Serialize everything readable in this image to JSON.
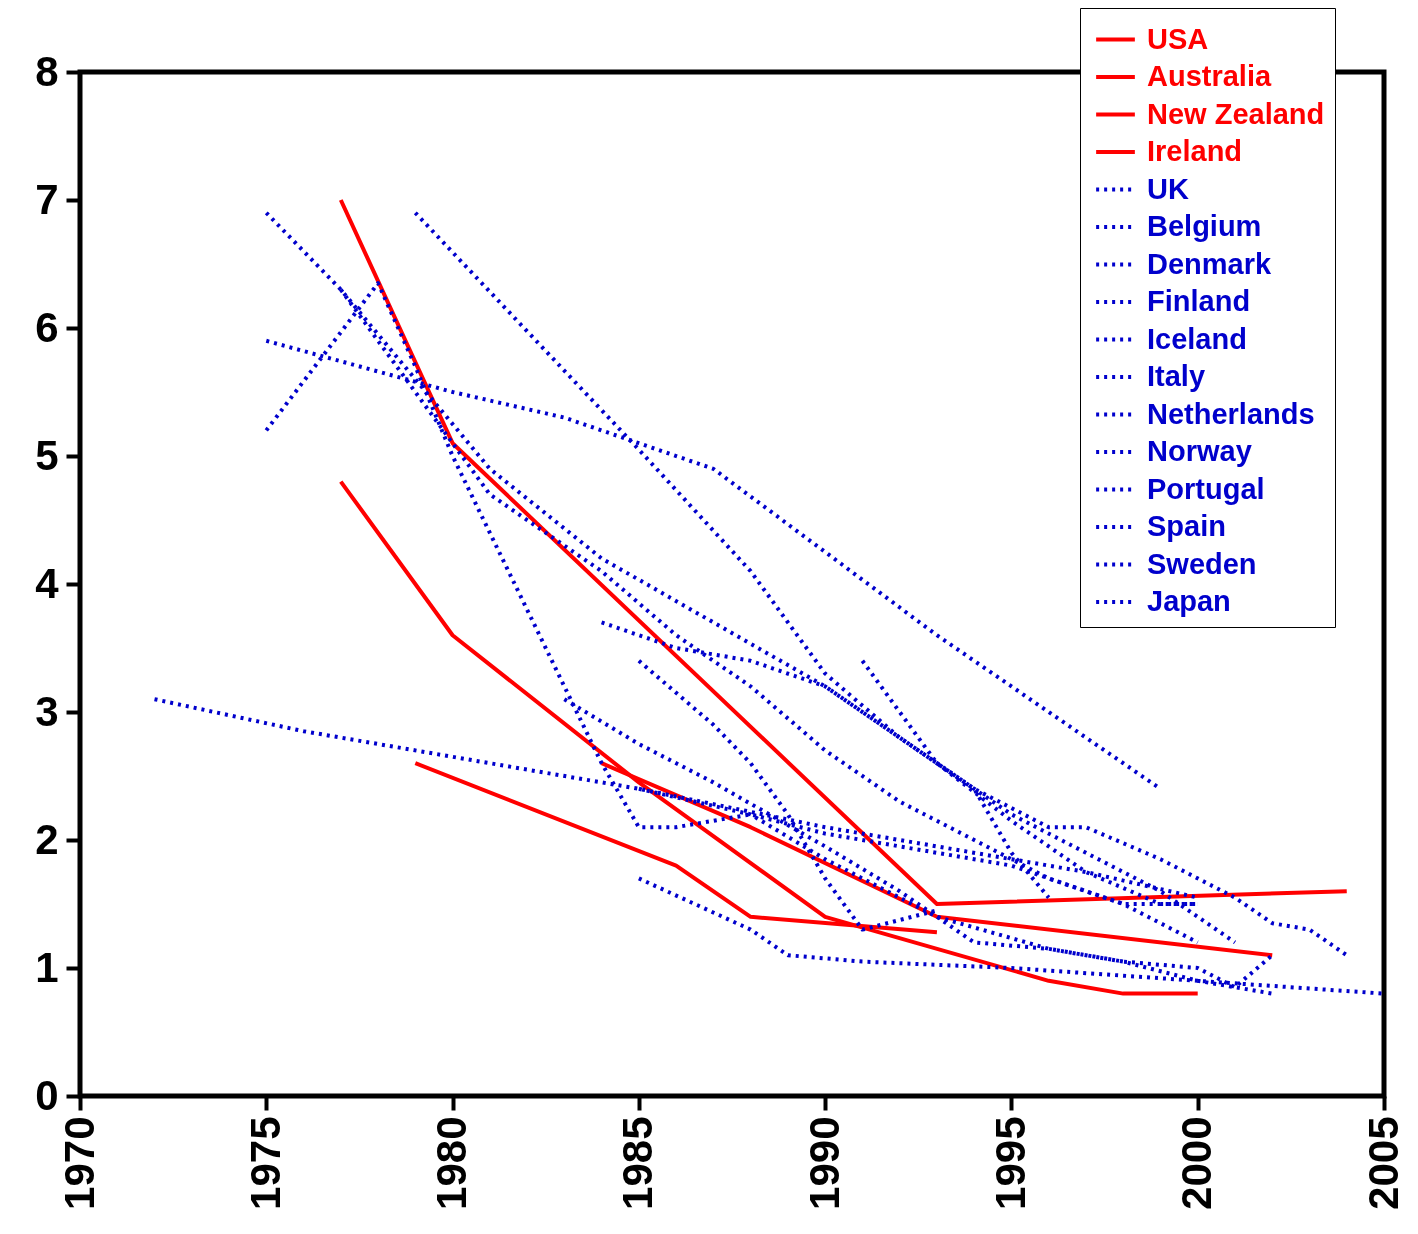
{
  "chart_data": {
    "type": "line",
    "xlim": [
      1970,
      2005
    ],
    "xticks": [
      1970,
      1975,
      1980,
      1985,
      1990,
      1995,
      2000,
      2005
    ],
    "ylim": [
      0,
      8
    ],
    "yticks": [
      0,
      1,
      2,
      3,
      4,
      5,
      6,
      7,
      8
    ],
    "grid": false,
    "legend": "top right",
    "marker": "none",
    "series": [
      {
        "name": "USA",
        "color": "#ff0000",
        "line_style": "solid",
        "x": [
          1977,
          1980,
          1993,
          2004
        ],
        "values": [
          7.0,
          5.1,
          1.5,
          1.6
        ]
      },
      {
        "name": "Australia",
        "color": "#ff0000",
        "line_style": "solid",
        "x": [
          1977,
          1980,
          1985,
          1990,
          1996,
          1998,
          2000
        ],
        "values": [
          4.8,
          3.6,
          2.45,
          1.4,
          0.9,
          0.8,
          0.8
        ]
      },
      {
        "name": "New Zealand",
        "color": "#ff0000",
        "line_style": "solid",
        "x": [
          1979,
          1986,
          1988,
          1993
        ],
        "values": [
          2.6,
          1.8,
          1.4,
          1.28
        ]
      },
      {
        "name": "Ireland",
        "color": "#ff0000",
        "line_style": "solid",
        "x": [
          1984,
          1988,
          1993,
          2002
        ],
        "values": [
          2.6,
          2.1,
          1.4,
          1.1
        ]
      },
      {
        "name": "UK",
        "color": "#0000cc",
        "line_style": "dotted",
        "x": [
          1972,
          1976,
          1980,
          1985,
          1990,
          1993,
          1997,
          2000
        ],
        "values": [
          3.1,
          2.85,
          2.65,
          2.4,
          2.1,
          1.95,
          1.75,
          1.55
        ]
      },
      {
        "name": "Belgium",
        "color": "#0000cc",
        "line_style": "dotted",
        "x": [
          1979,
          1985,
          1988,
          1990,
          1992,
          1994,
          1995,
          1996
        ],
        "values": [
          6.9,
          5.05,
          4.1,
          3.3,
          2.8,
          2.4,
          1.9,
          1.55
        ]
      },
      {
        "name": "Denmark",
        "color": "#0000cc",
        "line_style": "dotted",
        "x": [
          1975,
          1980,
          1983,
          1985,
          1987,
          1990,
          1993,
          1996,
          1999
        ],
        "values": [
          5.9,
          5.5,
          5.3,
          5.1,
          4.9,
          4.25,
          3.6,
          3.0,
          2.4
        ]
      },
      {
        "name": "Finland",
        "color": "#0000cc",
        "line_style": "dotted",
        "x": [
          1975,
          1978,
          1979,
          1980,
          1982,
          1984,
          1985,
          1986,
          1988,
          1990,
          1992,
          1995,
          1998,
          2000
        ],
        "values": [
          5.2,
          6.35,
          5.7,
          5.0,
          3.8,
          2.6,
          2.1,
          2.1,
          2.2,
          2.05,
          1.95,
          1.8,
          1.5,
          1.5
        ]
      },
      {
        "name": "Iceland",
        "color": "#0000cc",
        "line_style": "dotted",
        "x": [
          1975,
          1977,
          1979,
          1981,
          1984,
          1987,
          1990,
          1993,
          1995,
          1997,
          1999,
          2001
        ],
        "values": [
          6.9,
          6.3,
          5.6,
          4.9,
          4.2,
          3.7,
          3.2,
          2.6,
          2.2,
          1.9,
          1.6,
          1.2
        ]
      },
      {
        "name": "Italy",
        "color": "#0000cc",
        "line_style": "dotted",
        "x": [
          1977,
          1979,
          1981,
          1984,
          1986,
          1988,
          1990,
          1992,
          1994,
          1996,
          1998,
          2000
        ],
        "values": [
          6.3,
          5.5,
          4.7,
          4.1,
          3.6,
          3.2,
          2.7,
          2.3,
          2.0,
          1.7,
          1.5,
          1.2
        ]
      },
      {
        "name": "Netherlands",
        "color": "#0000cc",
        "line_style": "dotted",
        "x": [
          1984,
          1986,
          1988,
          1990,
          1992,
          1994,
          1996,
          1997,
          1999,
          2001,
          2002,
          2003,
          2004
        ],
        "values": [
          3.7,
          3.5,
          3.4,
          3.2,
          2.8,
          2.4,
          2.1,
          2.1,
          1.85,
          1.55,
          1.35,
          1.3,
          1.1
        ]
      },
      {
        "name": "Norway",
        "color": "#0000cc",
        "line_style": "dotted",
        "x": [
          1985,
          1987,
          1988,
          1989,
          1990,
          1991,
          1993
        ],
        "values": [
          3.4,
          2.9,
          2.6,
          2.2,
          1.7,
          1.3,
          1.45
        ]
      },
      {
        "name": "Portugal",
        "color": "#0000cc",
        "line_style": "dotted",
        "x": [
          1991,
          1993,
          1995,
          1997,
          1999,
          2000
        ],
        "values": [
          3.4,
          2.6,
          2.15,
          1.75,
          1.5,
          1.5
        ]
      },
      {
        "name": "Spain",
        "color": "#0000cc",
        "line_style": "dotted",
        "x": [
          1983,
          1985,
          1987,
          1990,
          1992,
          1994,
          1996,
          1998,
          2000,
          2002
        ],
        "values": [
          3.1,
          2.75,
          2.45,
          1.95,
          1.6,
          1.2,
          1.15,
          1.05,
          0.9,
          0.8
        ]
      },
      {
        "name": "Sweden",
        "color": "#0000cc",
        "line_style": "dotted",
        "x": [
          1985,
          1988,
          1990,
          1993,
          1996,
          1998,
          2000,
          2001,
          2002
        ],
        "values": [
          2.4,
          2.2,
          1.85,
          1.4,
          1.15,
          1.05,
          1.0,
          0.85,
          1.1
        ]
      },
      {
        "name": "Japan",
        "color": "#0000cc",
        "line_style": "dotted",
        "x": [
          1985,
          1988,
          1989,
          1991,
          1995,
          2000,
          2005
        ],
        "values": [
          1.7,
          1.3,
          1.1,
          1.05,
          1.0,
          0.9,
          0.8
        ]
      }
    ]
  }
}
